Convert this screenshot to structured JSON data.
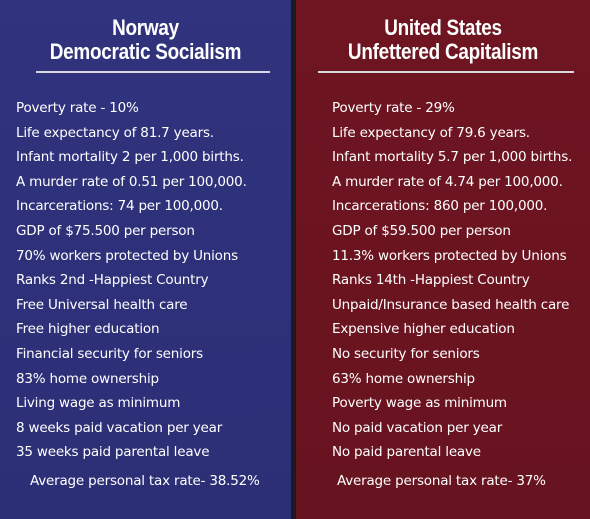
{
  "left": {
    "title_line1": "Norway",
    "title_line2": "Democratic Socialism",
    "items": [
      "Poverty rate - 10%",
      "Life expectancy of 81.7 years.",
      "Infant mortality 2 per 1,000 births.",
      "A murder rate of 0.51 per 100,000.",
      "Incarcerations: 74 per 100,000.",
      "GDP of $75.500 per person",
      "70% workers protected by Unions",
      "Ranks 2nd -Happiest Country",
      "Free Universal health care",
      "Free higher education",
      "Financial security for seniors",
      "83% home ownership",
      "Living wage as minimum",
      "8 weeks paid vacation per year",
      "35 weeks paid parental leave"
    ],
    "footer": "Average personal tax rate- 38.52%",
    "background_color": "#2e3179"
  },
  "right": {
    "title_line1": "United States",
    "title_line2": "Unfettered Capitalism",
    "items": [
      "Poverty rate - 29%",
      "Life expectancy of 79.6 years.",
      "Infant mortality 5.7 per 1,000 births.",
      "A murder rate of 4.74 per 100,000.",
      "Incarcerations: 860 per 100,000.",
      "GDP of $59.500 per person",
      "11.3% workers protected by Unions",
      "Ranks 14th -Happiest Country",
      "Unpaid/Insurance based health care",
      "Expensive higher education",
      "No security for seniors",
      "63% home ownership",
      "Poverty wage as minimum",
      "No paid vacation per year",
      "No paid parental leave"
    ],
    "footer": "Average personal tax rate- 37%",
    "background_color": "#6b1420"
  }
}
